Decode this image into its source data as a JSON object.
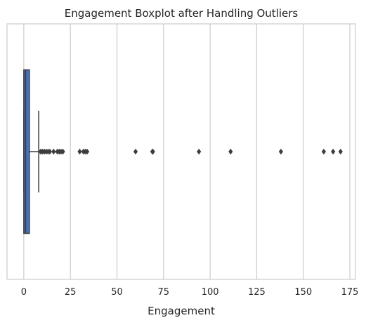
{
  "chart_data": {
    "type": "box",
    "orientation": "horizontal",
    "title": "Engagement Boxplot after Handling Outliers",
    "xlabel": "Engagement",
    "ylabel": "",
    "xlim": [
      -9,
      178
    ],
    "xticks": [
      0,
      25,
      50,
      75,
      100,
      125,
      150,
      175
    ],
    "grid": "vertical",
    "colors": {
      "box": "#4c72b0",
      "line": "#3d3d3d",
      "grid": "#cccccc",
      "frame": "#cccccc"
    },
    "box": {
      "whisker_low": 0,
      "q1": 0,
      "median": 1,
      "q3": 3,
      "whisker_high": 8
    },
    "outliers": [
      9,
      10,
      11,
      12,
      13,
      14,
      16,
      18,
      19,
      20,
      21,
      30,
      32,
      33,
      34,
      60,
      69,
      69.3,
      94,
      111,
      138,
      161,
      166,
      170
    ]
  }
}
